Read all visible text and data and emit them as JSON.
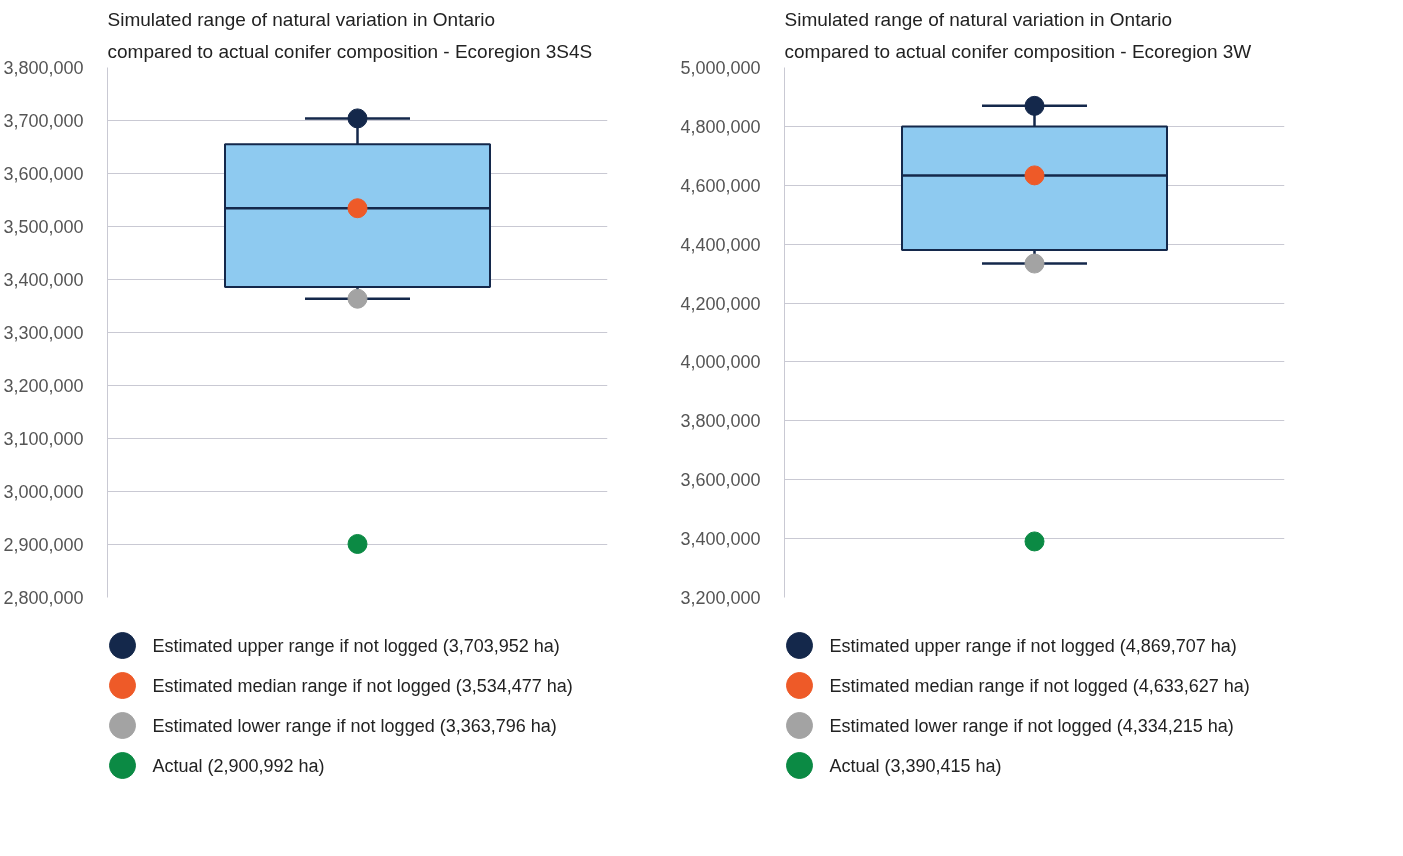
{
  "chart_data": [
    {
      "type": "box",
      "title": "Simulated range of natural variation in Ontario\ncompared to actual conifer composition - Ecoregion 3S4S",
      "categories": [
        null
      ],
      "color": "#8ecaf0",
      "boxes": [
        {
          "low": 3363796,
          "q1": 3386000,
          "median": 3534477,
          "q3": 3655000,
          "high": 3703952
        }
      ],
      "ylim": [
        2800000,
        3800000
      ],
      "yticks": [
        {
          "value": 2800000,
          "label": "2,800,000"
        },
        {
          "value": 2900000,
          "label": "2,900,000"
        },
        {
          "value": 3000000,
          "label": "3,000,000"
        },
        {
          "value": 3100000,
          "label": "3,100,000"
        },
        {
          "value": 3200000,
          "label": "3,200,000"
        },
        {
          "value": 3300000,
          "label": "3,300,000"
        },
        {
          "value": 3400000,
          "label": "3,400,000"
        },
        {
          "value": 3500000,
          "label": "3,500,000"
        },
        {
          "value": 3600000,
          "label": "3,600,000"
        },
        {
          "value": 3700000,
          "label": "3,700,000"
        },
        {
          "value": 3800000,
          "label": "3,800,000"
        }
      ],
      "grid": "y",
      "tick_labels": "y",
      "legend": "bottom",
      "series": [
        {
          "type": "scatter",
          "name": "Estimated upper range if not logged (3,703,952 ha)",
          "color": "#14284b",
          "values": [
            3703952
          ]
        },
        {
          "type": "scatter",
          "name": "Estimated median range if not logged (3,534,477 ha)",
          "color": "#ee5a28",
          "values": [
            3534477
          ]
        },
        {
          "type": "scatter",
          "name": "Estimated lower range if not logged (3,363,796 ha)",
          "color": "#a3a3a3",
          "values": [
            3363796
          ]
        },
        {
          "type": "scatter",
          "name": "Actual (2,900,992 ha)",
          "color": "#0b8a44",
          "values": [
            2900992
          ]
        }
      ]
    },
    {
      "type": "box",
      "title": "Simulated range of natural variation in Ontario\ncompared to actual conifer composition - Ecoregion 3W",
      "categories": [
        null
      ],
      "color": "#8ecaf0",
      "boxes": [
        {
          "low": 4334215,
          "q1": 4380000,
          "median": 4633627,
          "q3": 4800000,
          "high": 4869707
        }
      ],
      "ylim": [
        3200000,
        5000000
      ],
      "yticks": [
        {
          "value": 3200000,
          "label": "3,200,000"
        },
        {
          "value": 3400000,
          "label": "3,400,000"
        },
        {
          "value": 3600000,
          "label": "3,600,000"
        },
        {
          "value": 3800000,
          "label": "3,800,000"
        },
        {
          "value": 4000000,
          "label": "4,000,000"
        },
        {
          "value": 4200000,
          "label": "4,200,000"
        },
        {
          "value": 4400000,
          "label": "4,400,000"
        },
        {
          "value": 4600000,
          "label": "4,600,000"
        },
        {
          "value": 4800000,
          "label": "4,800,000"
        },
        {
          "value": 5000000,
          "label": "5,000,000"
        }
      ],
      "grid": "y",
      "tick_labels": "y",
      "legend": "bottom",
      "series": [
        {
          "type": "scatter",
          "name": "Estimated upper range if not logged (4,869,707 ha)",
          "color": "#14284b",
          "values": [
            4869707
          ]
        },
        {
          "type": "scatter",
          "name": "Estimated median range if not logged (4,633,627 ha)",
          "color": "#ee5a28",
          "values": [
            4633627
          ]
        },
        {
          "type": "scatter",
          "name": "Estimated lower range if not logged (4,334,215 ha)",
          "color": "#a3a3a3",
          "values": [
            4334215
          ]
        },
        {
          "type": "scatter",
          "name": "Actual (3,390,415 ha)",
          "color": "#0b8a44",
          "values": [
            3390415
          ]
        }
      ]
    }
  ]
}
